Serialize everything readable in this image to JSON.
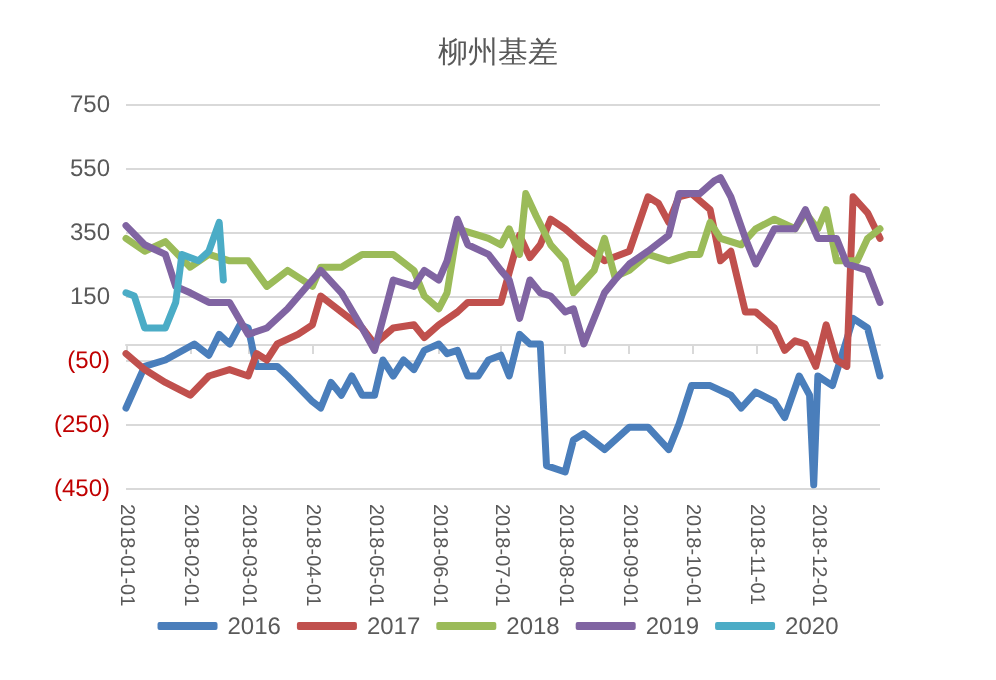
{
  "chart_data": {
    "type": "line",
    "title": "柳州基差",
    "xlim": [
      "2018-01-01",
      "2018-12-31"
    ],
    "xticks": [
      "2018-01-01",
      "2018-02-01",
      "2018-03-01",
      "2018-04-01",
      "2018-05-01",
      "2018-06-01",
      "2018-07-01",
      "2018-08-01",
      "2018-09-01",
      "2018-10-01",
      "2018-11-01",
      "2018-12-01"
    ],
    "ylim": [
      -450,
      750
    ],
    "yticks": [
      {
        "value": -450,
        "label": "(450)"
      },
      {
        "value": -250,
        "label": "(250)"
      },
      {
        "value": -50,
        "label": "(50)"
      },
      150,
      350,
      550,
      750
    ],
    "grid": "y",
    "legend": "bottom",
    "marker": "none",
    "line_style": "solid",
    "series": [
      {
        "name": "2016",
        "color": "#4a7ebb",
        "x": [
          "2018-01-01",
          "2018-01-10",
          "2018-01-20",
          "2018-02-03",
          "2018-02-10",
          "2018-02-15",
          "2018-02-20",
          "2018-02-25",
          "2018-03-01",
          "2018-03-05",
          "2018-03-15",
          "2018-03-20",
          "2018-04-01",
          "2018-04-05",
          "2018-04-10",
          "2018-04-15",
          "2018-04-20",
          "2018-04-25",
          "2018-05-01",
          "2018-05-05",
          "2018-05-10",
          "2018-05-15",
          "2018-05-20",
          "2018-05-25",
          "2018-06-01",
          "2018-06-05",
          "2018-06-10",
          "2018-06-15",
          "2018-06-20",
          "2018-06-25",
          "2018-07-01",
          "2018-07-05",
          "2018-07-10",
          "2018-07-15",
          "2018-07-20",
          "2018-07-23",
          "2018-08-01",
          "2018-08-05",
          "2018-08-10",
          "2018-08-20",
          "2018-09-01",
          "2018-09-10",
          "2018-09-20",
          "2018-09-25",
          "2018-10-01",
          "2018-10-10",
          "2018-10-20",
          "2018-10-25",
          "2018-11-01",
          "2018-11-10",
          "2018-11-15",
          "2018-11-22",
          "2018-11-27",
          "2018-11-29",
          "2018-12-01",
          "2018-12-08",
          "2018-12-15",
          "2018-12-18",
          "2018-12-25",
          "2018-12-31"
        ],
        "values": [
          -200,
          -70,
          -50,
          0,
          -35,
          30,
          0,
          60,
          50,
          -70,
          -70,
          -100,
          -180,
          -200,
          -120,
          -160,
          -100,
          -160,
          -160,
          -50,
          -100,
          -50,
          -80,
          -20,
          0,
          -30,
          -20,
          -100,
          -100,
          -50,
          -35,
          -100,
          30,
          0,
          0,
          -380,
          -400,
          -300,
          -280,
          -330,
          -260,
          -260,
          -330,
          -250,
          -130,
          -130,
          -160,
          -200,
          -150,
          -180,
          -230,
          -100,
          -160,
          -440,
          -100,
          -130,
          15,
          80,
          50,
          -100
        ]
      },
      {
        "name": "2017",
        "color": "#c0504d",
        "x": [
          "2018-01-01",
          "2018-01-10",
          "2018-01-20",
          "2018-02-01",
          "2018-02-10",
          "2018-02-20",
          "2018-03-01",
          "2018-03-05",
          "2018-03-10",
          "2018-03-15",
          "2018-03-25",
          "2018-04-01",
          "2018-04-05",
          "2018-04-15",
          "2018-04-25",
          "2018-05-01",
          "2018-05-10",
          "2018-05-20",
          "2018-05-25",
          "2018-06-01",
          "2018-06-10",
          "2018-06-15",
          "2018-06-25",
          "2018-07-01",
          "2018-07-10",
          "2018-07-15",
          "2018-07-20",
          "2018-07-25",
          "2018-08-01",
          "2018-08-10",
          "2018-08-20",
          "2018-09-01",
          "2018-09-10",
          "2018-09-15",
          "2018-09-20",
          "2018-09-25",
          "2018-10-01",
          "2018-10-10",
          "2018-10-15",
          "2018-10-20",
          "2018-10-27",
          "2018-11-01",
          "2018-11-10",
          "2018-11-15",
          "2018-11-20",
          "2018-11-25",
          "2018-11-30",
          "2018-12-05",
          "2018-12-10",
          "2018-12-15",
          "2018-12-18",
          "2018-12-25",
          "2018-12-31"
        ],
        "values": [
          -30,
          -80,
          -120,
          -160,
          -100,
          -80,
          -100,
          -30,
          -50,
          0,
          30,
          60,
          150,
          100,
          50,
          0,
          50,
          60,
          20,
          60,
          100,
          130,
          130,
          130,
          340,
          270,
          310,
          390,
          360,
          310,
          260,
          290,
          460,
          440,
          380,
          460,
          470,
          420,
          260,
          290,
          100,
          100,
          50,
          -20,
          10,
          0,
          -70,
          60,
          -50,
          -70,
          460,
          410,
          330
        ]
      },
      {
        "name": "2018",
        "color": "#9bbb59",
        "x": [
          "2018-01-01",
          "2018-01-10",
          "2018-01-20",
          "2018-02-01",
          "2018-02-10",
          "2018-02-20",
          "2018-03-01",
          "2018-03-10",
          "2018-03-20",
          "2018-04-01",
          "2018-04-05",
          "2018-04-15",
          "2018-04-25",
          "2018-05-01",
          "2018-05-10",
          "2018-05-20",
          "2018-05-25",
          "2018-06-01",
          "2018-06-05",
          "2018-06-10",
          "2018-06-20",
          "2018-06-25",
          "2018-07-01",
          "2018-07-05",
          "2018-07-10",
          "2018-07-13",
          "2018-07-18",
          "2018-07-25",
          "2018-08-01",
          "2018-08-05",
          "2018-08-15",
          "2018-08-20",
          "2018-08-25",
          "2018-09-01",
          "2018-09-10",
          "2018-09-20",
          "2018-09-30",
          "2018-10-05",
          "2018-10-10",
          "2018-10-15",
          "2018-10-25",
          "2018-11-01",
          "2018-11-10",
          "2018-11-20",
          "2018-11-25",
          "2018-12-01",
          "2018-12-05",
          "2018-12-10",
          "2018-12-20",
          "2018-12-25",
          "2018-12-31"
        ],
        "values": [
          330,
          290,
          320,
          240,
          280,
          260,
          260,
          180,
          230,
          180,
          240,
          240,
          280,
          280,
          280,
          230,
          150,
          110,
          160,
          360,
          340,
          330,
          310,
          360,
          280,
          470,
          400,
          310,
          260,
          160,
          230,
          330,
          210,
          230,
          280,
          260,
          280,
          280,
          380,
          330,
          310,
          360,
          390,
          360,
          410,
          360,
          420,
          260,
          260,
          330,
          360
        ]
      },
      {
        "name": "2019",
        "color": "#8064a2",
        "x": [
          "2018-01-01",
          "2018-01-10",
          "2018-01-20",
          "2018-01-25",
          "2018-02-01",
          "2018-02-10",
          "2018-02-20",
          "2018-03-01",
          "2018-03-10",
          "2018-03-20",
          "2018-04-01",
          "2018-04-05",
          "2018-04-15",
          "2018-04-25",
          "2018-05-01",
          "2018-05-10",
          "2018-05-20",
          "2018-05-25",
          "2018-06-01",
          "2018-06-05",
          "2018-06-10",
          "2018-06-15",
          "2018-06-25",
          "2018-07-01",
          "2018-07-05",
          "2018-07-10",
          "2018-07-15",
          "2018-07-20",
          "2018-07-25",
          "2018-08-01",
          "2018-08-05",
          "2018-08-10",
          "2018-08-20",
          "2018-08-25",
          "2018-09-01",
          "2018-09-10",
          "2018-09-20",
          "2018-09-25",
          "2018-10-05",
          "2018-10-12",
          "2018-10-15",
          "2018-10-20",
          "2018-10-27",
          "2018-11-01",
          "2018-11-10",
          "2018-11-20",
          "2018-11-25",
          "2018-12-01",
          "2018-12-10",
          "2018-12-15",
          "2018-12-25",
          "2018-12-31"
        ],
        "values": [
          370,
          310,
          280,
          180,
          160,
          130,
          130,
          30,
          50,
          110,
          200,
          230,
          160,
          50,
          -20,
          200,
          180,
          230,
          200,
          260,
          390,
          310,
          280,
          230,
          200,
          80,
          200,
          160,
          150,
          100,
          110,
          0,
          160,
          200,
          250,
          290,
          340,
          470,
          470,
          510,
          520,
          460,
          330,
          250,
          360,
          360,
          420,
          330,
          330,
          250,
          230,
          130
        ]
      },
      {
        "name": "2020",
        "color": "#4bacc6",
        "x": [
          "2018-01-01",
          "2018-01-05",
          "2018-01-10",
          "2018-01-20",
          "2018-01-25",
          "2018-01-28",
          "2018-02-05",
          "2018-02-10",
          "2018-02-15",
          "2018-02-17"
        ],
        "values": [
          160,
          150,
          50,
          50,
          130,
          280,
          260,
          290,
          380,
          200
        ]
      }
    ]
  }
}
